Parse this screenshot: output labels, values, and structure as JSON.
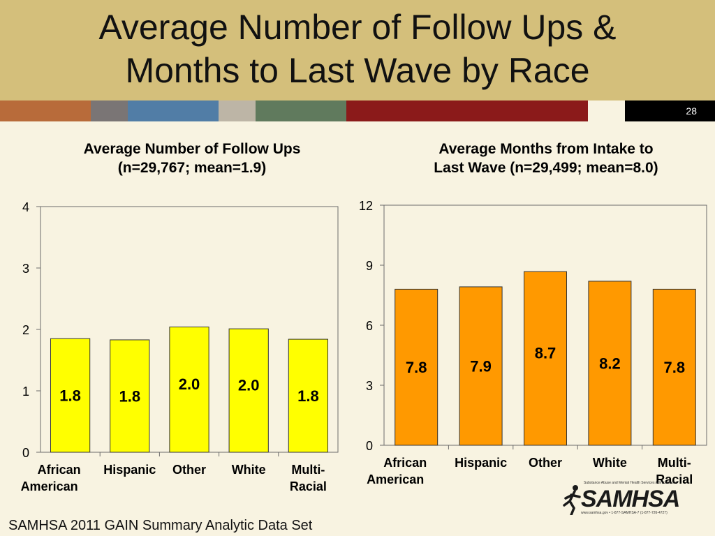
{
  "slide": {
    "title": "Average Number of Follow Ups &\nMonths to Last Wave by Race",
    "page_number": "28",
    "source": "SAMHSA 2011 GAIN Summary Analytic Data Set"
  },
  "logo": {
    "name": "SAMHSA",
    "tagline": "Substance Abuse and Mental Health Services Administration",
    "contact": "www.samhsa.gov • 1-877-SAMHSA-7 (1-877-726-4727)"
  },
  "colors": {
    "header": "#d4bf7b",
    "background": "#f8f3e1",
    "left_bars": "#ffff00",
    "right_bars": "#ff9900",
    "stripes": [
      "#b86b3a",
      "#7a7575",
      "#517da6",
      "#bdb5a6",
      "#607a5d",
      "#8b1a1a",
      "#f8f3e1",
      "#000000"
    ]
  },
  "chart_data": [
    {
      "type": "bar",
      "title": "Average Number of Follow Ups\n(n=29,767; mean=1.9)",
      "categories": [
        "African American",
        "Hispanic",
        "Other",
        "White",
        "Multi-Racial"
      ],
      "category_lines": [
        [
          "African",
          "American"
        ],
        [
          "Hispanic"
        ],
        [
          "Other"
        ],
        [
          "White"
        ],
        [
          "Multi-",
          "Racial"
        ]
      ],
      "values": [
        1.85,
        1.83,
        2.04,
        2.01,
        1.84
      ],
      "data_labels": [
        "1.8",
        "1.8",
        "2.0",
        "2.0",
        "1.8"
      ],
      "ylim": [
        0,
        4
      ],
      "yticks": [
        "0",
        "1",
        "2",
        "3",
        "4"
      ],
      "xlabel": "",
      "ylabel": "",
      "grid": false,
      "legend": "none",
      "bar_color": "#ffff00"
    },
    {
      "type": "bar",
      "title": "Average Months from Intake to\nLast Wave (n=29,499; mean=8.0)",
      "categories": [
        "African American",
        "Hispanic",
        "Other",
        "White",
        "Multi-Racial"
      ],
      "category_lines": [
        [
          "African",
          "American"
        ],
        [
          "Hispanic"
        ],
        [
          "Other"
        ],
        [
          "White"
        ],
        [
          "Multi-",
          "Racial"
        ]
      ],
      "values": [
        7.8,
        7.92,
        8.68,
        8.2,
        7.8
      ],
      "data_labels": [
        "7.8",
        "7.9",
        "8.7",
        "8.2",
        "7.8"
      ],
      "ylim": [
        0,
        12
      ],
      "yticks": [
        "0",
        "3",
        "6",
        "9",
        "12"
      ],
      "xlabel": "",
      "ylabel": "",
      "grid": false,
      "legend": "none",
      "bar_color": "#ff9900"
    }
  ]
}
